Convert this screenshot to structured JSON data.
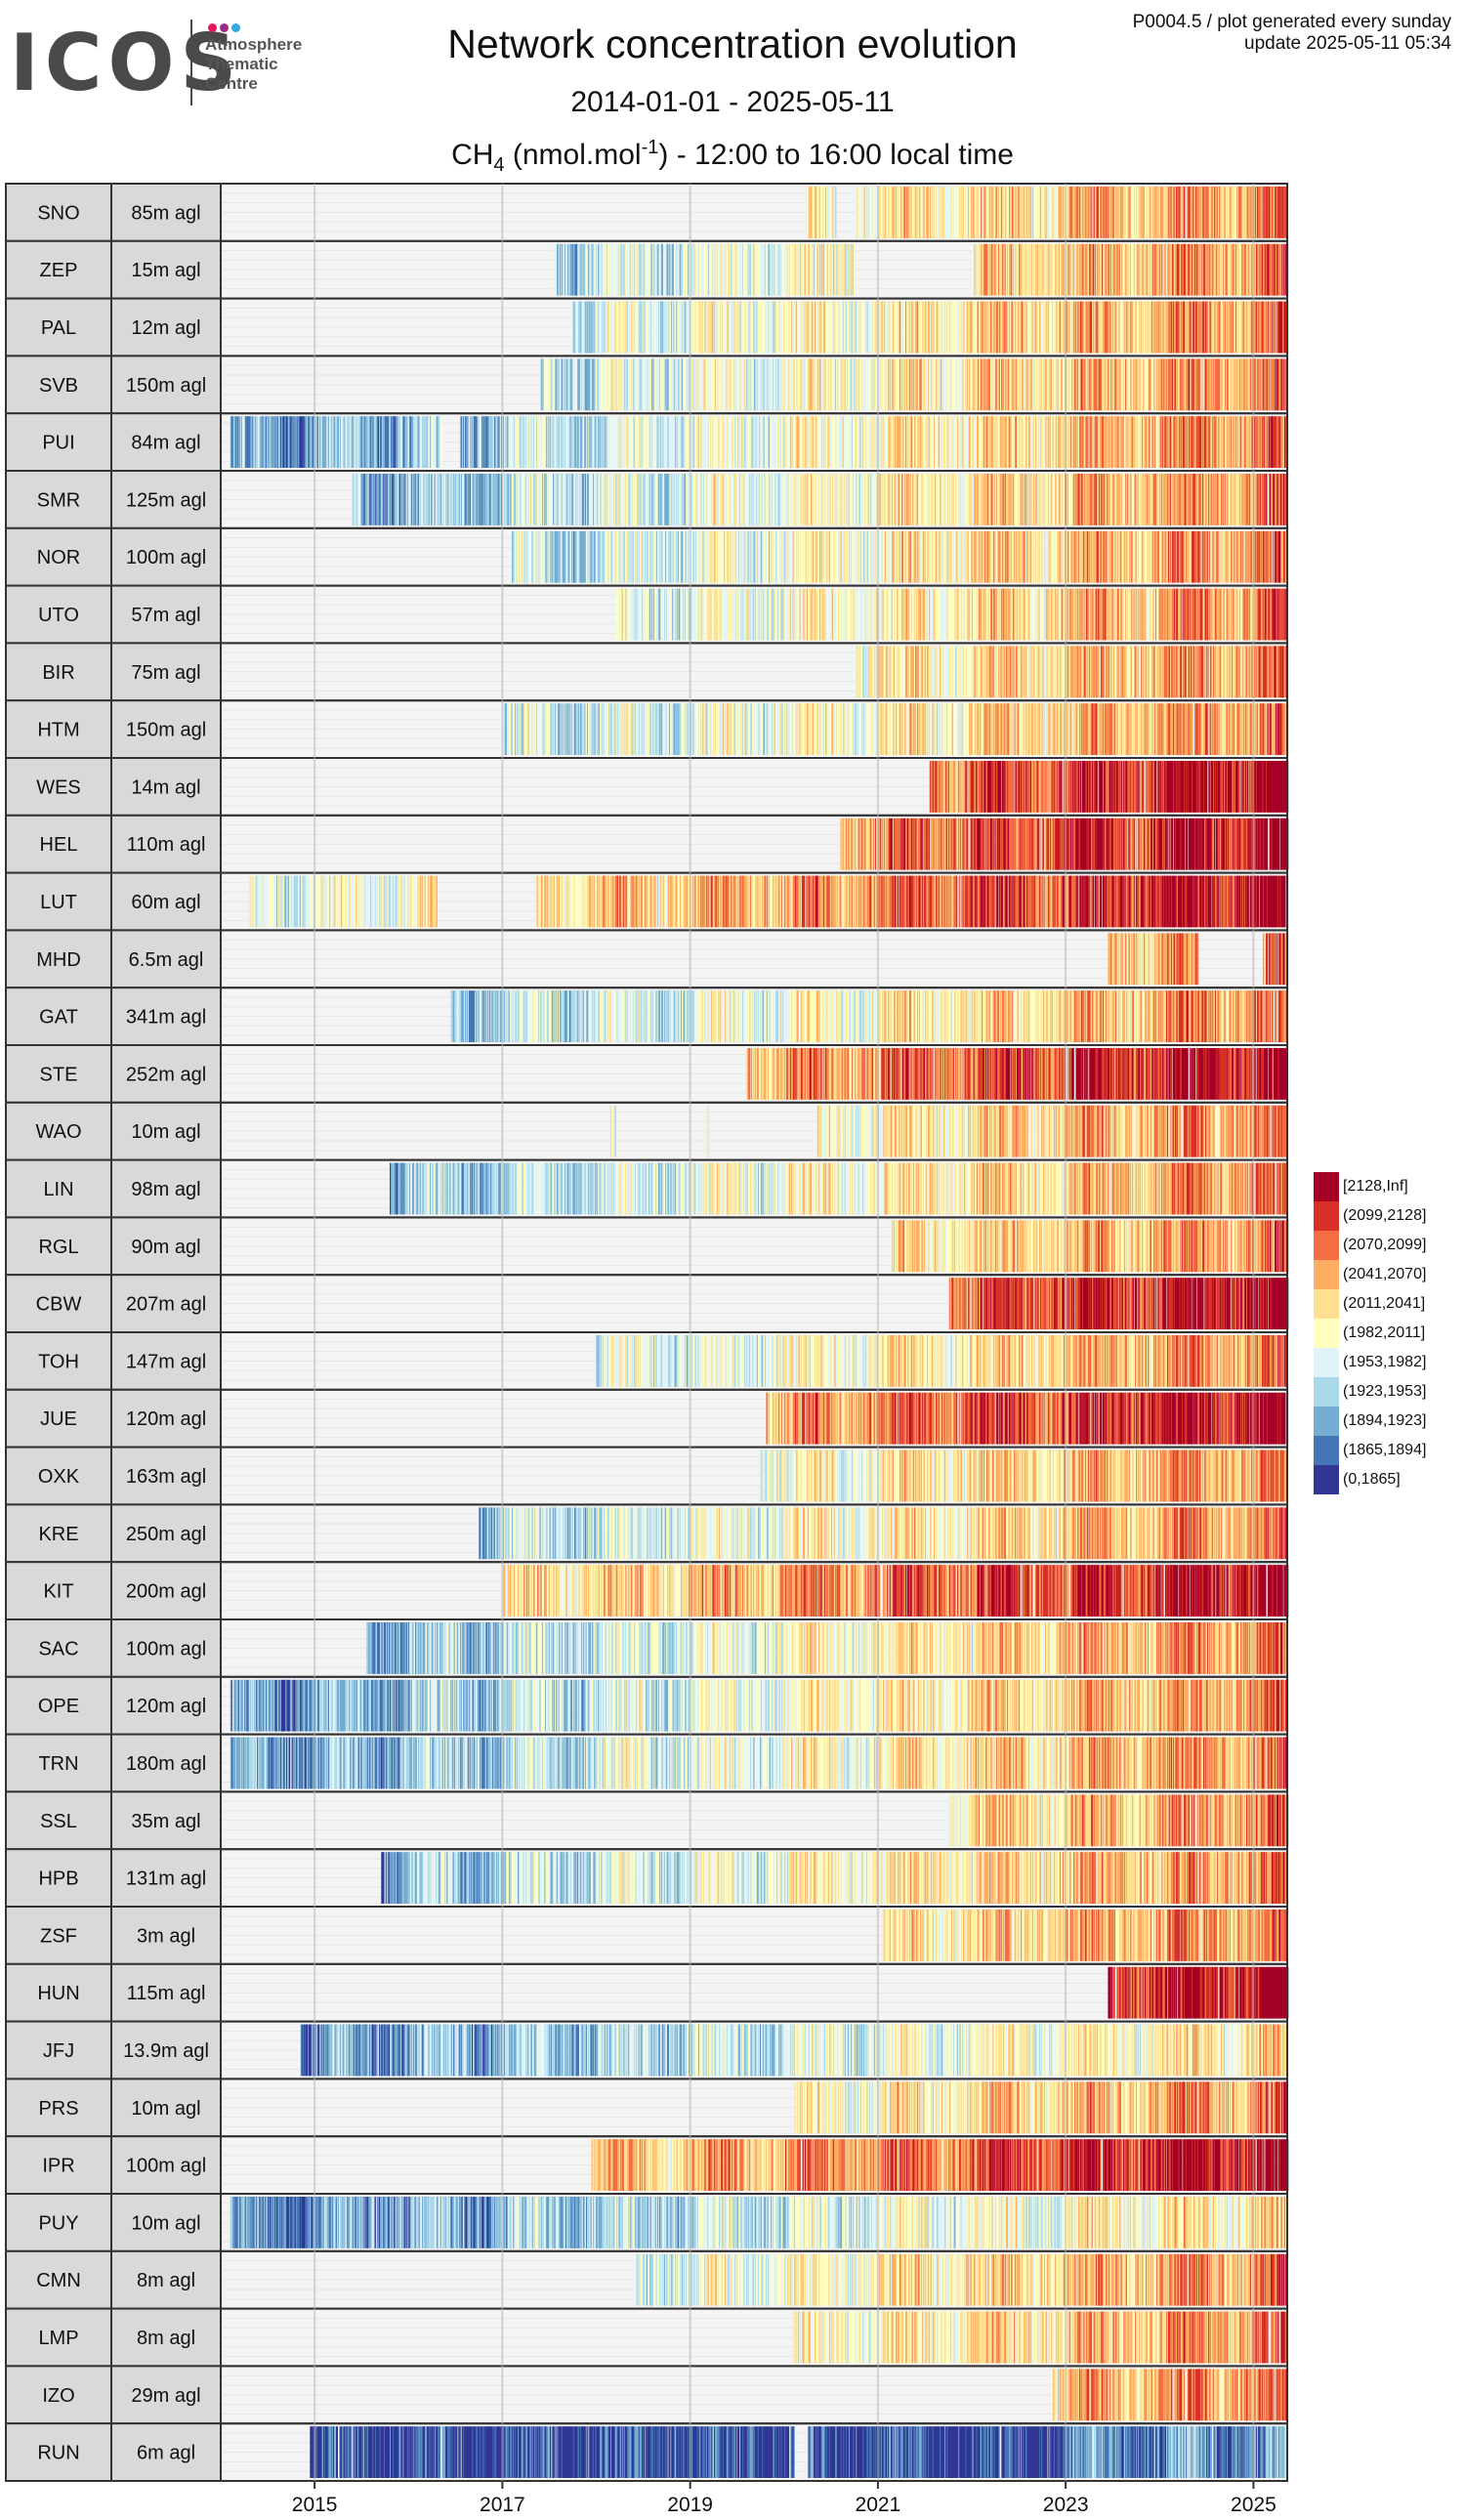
{
  "logo": {
    "wordmark": "ICOS",
    "sub": [
      "Atmosphere",
      "Thematic",
      "Centre"
    ],
    "dot_colors": [
      "#e4185b",
      "#a02a86",
      "#2eaae1"
    ]
  },
  "title": "Network concentration evolution",
  "date_range": "2014-01-01 - 2025-05-11",
  "variable": {
    "species": "CH",
    "subscript": "4",
    "unit_pre": " (nmol.mol",
    "unit_sup": "-1",
    "unit_post": ") - 12:00 to 16:00 local time"
  },
  "meta": {
    "line1": "P0004.5 / plot generated every sunday",
    "line2": "update  2025-05-11 05:34"
  },
  "chart_data": {
    "type": "heatmap",
    "x_axis": {
      "range": [
        "2014-01-01",
        "2025-05-11"
      ],
      "ticks": [
        "2015",
        "2017",
        "2019",
        "2021",
        "2023",
        "2025"
      ]
    },
    "legend": {
      "title": "",
      "placement": "right",
      "bins": [
        {
          "label": "[2128,Inf]",
          "color": "#a50026"
        },
        {
          "label": "(2099,2128]",
          "color": "#d73027"
        },
        {
          "label": "(2070,2099]",
          "color": "#f46d43"
        },
        {
          "label": "(2041,2070]",
          "color": "#fdae61"
        },
        {
          "label": "(2011,2041]",
          "color": "#fee090"
        },
        {
          "label": "(1982,2011]",
          "color": "#ffffbf"
        },
        {
          "label": "(1953,1982]",
          "color": "#e0f3f8"
        },
        {
          "label": "(1923,1953]",
          "color": "#abd9e9"
        },
        {
          "label": "(1894,1923]",
          "color": "#74add1"
        },
        {
          "label": "(1865,1894]",
          "color": "#4575b4"
        },
        {
          "label": "(0,1865]",
          "color": "#313695"
        }
      ]
    },
    "stations": [
      {
        "code": "SNO",
        "height": "85m agl",
        "start": 2020.25,
        "gaps": [
          [
            2020.55,
            2020.75
          ]
        ]
      },
      {
        "code": "ZEP",
        "height": "15m agl",
        "start": 2017.55,
        "gaps": [
          [
            2020.75,
            2022.0
          ]
        ]
      },
      {
        "code": "PAL",
        "height": "12m agl",
        "start": 2017.75,
        "gaps": []
      },
      {
        "code": "SVB",
        "height": "150m agl",
        "start": 2017.4,
        "gaps": []
      },
      {
        "code": "PUI",
        "height": "84m agl",
        "start": 2014.1,
        "gaps": [
          [
            2016.35,
            2016.55
          ]
        ]
      },
      {
        "code": "SMR",
        "height": "125m agl",
        "start": 2015.4,
        "gaps": []
      },
      {
        "code": "NOR",
        "height": "100m agl",
        "start": 2017.1,
        "gaps": []
      },
      {
        "code": "UTO",
        "height": "57m agl",
        "start": 2018.2,
        "gaps": []
      },
      {
        "code": "BIR",
        "height": "75m agl",
        "start": 2020.75,
        "gaps": []
      },
      {
        "code": "HTM",
        "height": "150m agl",
        "start": 2017.0,
        "gaps": []
      },
      {
        "code": "WES",
        "height": "14m agl",
        "start": 2021.55,
        "gaps": []
      },
      {
        "code": "HEL",
        "height": "110m agl",
        "start": 2020.6,
        "gaps": []
      },
      {
        "code": "LUT",
        "height": "60m agl",
        "start": 2014.3,
        "gaps": [
          [
            2016.3,
            2017.35
          ]
        ]
      },
      {
        "code": "MHD",
        "height": "6.5m agl",
        "start": 2023.45,
        "gaps": [
          [
            2024.4,
            2025.1
          ]
        ]
      },
      {
        "code": "GAT",
        "height": "341m agl",
        "start": 2016.45,
        "gaps": []
      },
      {
        "code": "STE",
        "height": "252m agl",
        "start": 2019.6,
        "gaps": []
      },
      {
        "code": "WAO",
        "height": "10m agl",
        "start": 2018.15,
        "gaps": [
          [
            2018.2,
            2019.15
          ],
          [
            2019.2,
            2020.35
          ]
        ]
      },
      {
        "code": "LIN",
        "height": "98m agl",
        "start": 2015.8,
        "gaps": []
      },
      {
        "code": "RGL",
        "height": "90m agl",
        "start": 2021.15,
        "gaps": []
      },
      {
        "code": "CBW",
        "height": "207m agl",
        "start": 2021.75,
        "gaps": []
      },
      {
        "code": "TOH",
        "height": "147m agl",
        "start": 2018.0,
        "gaps": []
      },
      {
        "code": "JUE",
        "height": "120m agl",
        "start": 2019.8,
        "gaps": []
      },
      {
        "code": "OXK",
        "height": "163m agl",
        "start": 2019.75,
        "gaps": []
      },
      {
        "code": "KRE",
        "height": "250m agl",
        "start": 2016.75,
        "gaps": []
      },
      {
        "code": "KIT",
        "height": "200m agl",
        "start": 2017.0,
        "gaps": []
      },
      {
        "code": "SAC",
        "height": "100m agl",
        "start": 2015.55,
        "gaps": []
      },
      {
        "code": "OPE",
        "height": "120m agl",
        "start": 2014.1,
        "gaps": []
      },
      {
        "code": "TRN",
        "height": "180m agl",
        "start": 2014.1,
        "gaps": []
      },
      {
        "code": "SSL",
        "height": "35m agl",
        "start": 2021.75,
        "gaps": []
      },
      {
        "code": "HPB",
        "height": "131m agl",
        "start": 2015.7,
        "gaps": []
      },
      {
        "code": "ZSF",
        "height": "3m agl",
        "start": 2021.05,
        "gaps": []
      },
      {
        "code": "HUN",
        "height": "115m agl",
        "start": 2023.45,
        "gaps": []
      },
      {
        "code": "JFJ",
        "height": "13.9m agl",
        "start": 2014.85,
        "gaps": []
      },
      {
        "code": "PRS",
        "height": "10m agl",
        "start": 2020.1,
        "gaps": []
      },
      {
        "code": "IPR",
        "height": "100m agl",
        "start": 2017.95,
        "gaps": []
      },
      {
        "code": "PUY",
        "height": "10m agl",
        "start": 2014.1,
        "gaps": []
      },
      {
        "code": "CMN",
        "height": "8m agl",
        "start": 2018.4,
        "gaps": []
      },
      {
        "code": "LMP",
        "height": "8m agl",
        "start": 2020.1,
        "gaps": []
      },
      {
        "code": "IZO",
        "height": "29m agl",
        "start": 2022.85,
        "gaps": []
      },
      {
        "code": "RUN",
        "height": "6m agl",
        "start": 2014.95,
        "gaps": [
          [
            2020.1,
            2020.25
          ]
        ]
      }
    ]
  }
}
